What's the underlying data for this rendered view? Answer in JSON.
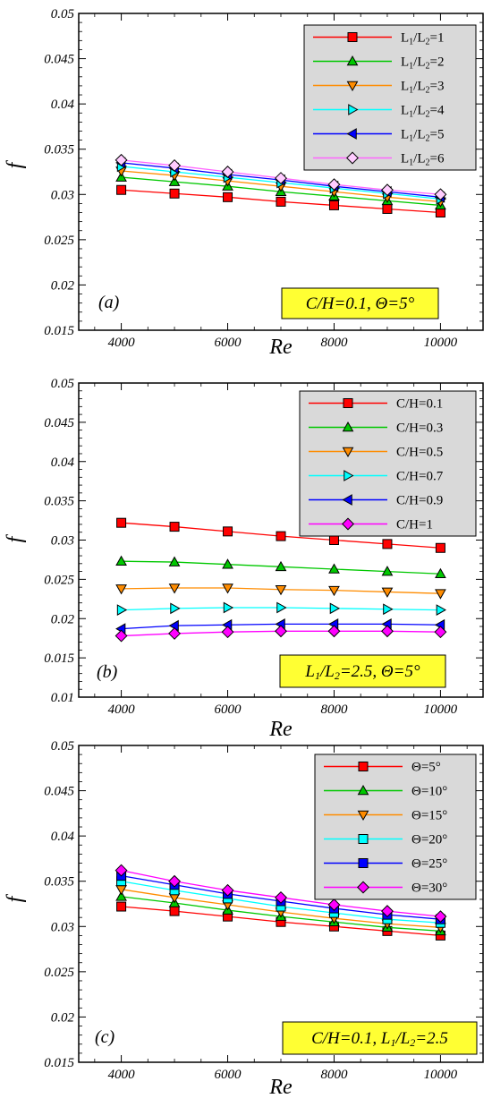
{
  "chart_data": [
    {
      "type": "line",
      "panel_label": "(a)",
      "xlabel": "Re",
      "ylabel": "f",
      "xlim": [
        3200,
        10800
      ],
      "ylim": [
        0.015,
        0.05
      ],
      "xticks": [
        "4000",
        "6000",
        "8000",
        "10000"
      ],
      "yticks": [
        "0.015",
        "0.02",
        "0.025",
        "0.03",
        "0.035",
        "0.04",
        "0.045",
        "0.05"
      ],
      "annotation": "C/H=0.1, Θ=5°",
      "legend_position": "top-right",
      "x": [
        4000,
        5000,
        6000,
        7000,
        8000,
        9000,
        10000
      ],
      "series": [
        {
          "name": "L1/L2=1",
          "label_base": "L",
          "label_parts": [
            "1",
            "/L",
            "2",
            "=1"
          ],
          "color": "#ff0000",
          "marker": "square",
          "fill": "#ff0000",
          "values": [
            0.0305,
            0.0301,
            0.0297,
            0.0292,
            0.0288,
            0.0284,
            0.028
          ]
        },
        {
          "name": "L1/L2=2",
          "label_base": "L",
          "label_parts": [
            "1",
            "/L",
            "2",
            "=2"
          ],
          "color": "#00c800",
          "marker": "triangle-up",
          "fill": "#00c800",
          "values": [
            0.0319,
            0.0314,
            0.0309,
            0.0303,
            0.0298,
            0.0293,
            0.0288
          ]
        },
        {
          "name": "L1/L2=3",
          "label_base": "L",
          "label_parts": [
            "1",
            "/L",
            "2",
            "=3"
          ],
          "color": "#ff8c00",
          "marker": "triangle-down",
          "fill": "#ff8c00",
          "values": [
            0.0326,
            0.0321,
            0.0315,
            0.0309,
            0.0303,
            0.0297,
            0.0292
          ]
        },
        {
          "name": "L1/L2=4",
          "label_base": "L",
          "label_parts": [
            "1",
            "/L",
            "2",
            "=4"
          ],
          "color": "#00ffff",
          "marker": "triangle-right",
          "fill": "#00ffff",
          "values": [
            0.0331,
            0.0325,
            0.0319,
            0.0313,
            0.0307,
            0.0301,
            0.0295
          ]
        },
        {
          "name": "L1/L2=5",
          "label_base": "L",
          "label_parts": [
            "1",
            "/L",
            "2",
            "=5"
          ],
          "color": "#0000ff",
          "marker": "triangle-left",
          "fill": "#0000ff",
          "values": [
            0.0335,
            0.0329,
            0.0322,
            0.0316,
            0.0309,
            0.0303,
            0.0297
          ]
        },
        {
          "name": "L1/L2=6",
          "label_base": "L",
          "label_parts": [
            "1",
            "/L",
            "2",
            "=6"
          ],
          "color": "#ff66ff",
          "marker": "diamond",
          "fill": "#ffccff",
          "values": [
            0.0338,
            0.0332,
            0.0325,
            0.0318,
            0.0311,
            0.0305,
            0.03
          ]
        }
      ]
    },
    {
      "type": "line",
      "panel_label": "(b)",
      "xlabel": "Re",
      "ylabel": "f",
      "xlim": [
        3200,
        10800
      ],
      "ylim": [
        0.01,
        0.05
      ],
      "xticks": [
        "4000",
        "6000",
        "8000",
        "10000"
      ],
      "yticks": [
        "0.01",
        "0.015",
        "0.02",
        "0.025",
        "0.03",
        "0.035",
        "0.04",
        "0.045",
        "0.05"
      ],
      "annotation": "L1/L2=2.5, Θ=5°",
      "legend_position": "top-right",
      "x": [
        4000,
        5000,
        6000,
        7000,
        8000,
        9000,
        10000
      ],
      "series": [
        {
          "name": "C/H=0.1",
          "color": "#ff0000",
          "marker": "square",
          "fill": "#ff0000",
          "values": [
            0.0322,
            0.0317,
            0.0311,
            0.0305,
            0.03,
            0.0295,
            0.029
          ]
        },
        {
          "name": "C/H=0.3",
          "color": "#00c800",
          "marker": "triangle-up",
          "fill": "#00c800",
          "values": [
            0.0273,
            0.0272,
            0.0269,
            0.0266,
            0.0263,
            0.026,
            0.0257
          ]
        },
        {
          "name": "C/H=0.5",
          "color": "#ff8c00",
          "marker": "triangle-down",
          "fill": "#ff8c00",
          "values": [
            0.0238,
            0.0239,
            0.0239,
            0.0237,
            0.0236,
            0.0234,
            0.0232
          ]
        },
        {
          "name": "C/H=0.7",
          "color": "#00ffff",
          "marker": "triangle-right",
          "fill": "#00ffff",
          "values": [
            0.0211,
            0.0213,
            0.0214,
            0.0214,
            0.0213,
            0.0212,
            0.0211
          ]
        },
        {
          "name": "C/H=0.9",
          "color": "#0000ff",
          "marker": "triangle-left",
          "fill": "#0000ff",
          "values": [
            0.0187,
            0.0191,
            0.0192,
            0.0193,
            0.0193,
            0.0193,
            0.0192
          ]
        },
        {
          "name": "C/H=1",
          "color": "#ff00ff",
          "marker": "diamond",
          "fill": "#ff00ff",
          "values": [
            0.0178,
            0.0181,
            0.0183,
            0.0184,
            0.0184,
            0.0184,
            0.0183
          ]
        }
      ]
    },
    {
      "type": "line",
      "panel_label": "(c)",
      "xlabel": "Re",
      "ylabel": "f",
      "xlim": [
        3200,
        10800
      ],
      "ylim": [
        0.015,
        0.05
      ],
      "xticks": [
        "4000",
        "6000",
        "8000",
        "10000"
      ],
      "yticks": [
        "0.015",
        "0.02",
        "0.025",
        "0.03",
        "0.035",
        "0.04",
        "0.045",
        "0.05"
      ],
      "annotation": "C/H=0.1, L1/L2=2.5",
      "legend_position": "top-right",
      "x": [
        4000,
        5000,
        6000,
        7000,
        8000,
        9000,
        10000
      ],
      "series": [
        {
          "name": "Θ=5°",
          "color": "#ff0000",
          "marker": "square",
          "fill": "#ff0000",
          "values": [
            0.0322,
            0.0317,
            0.0311,
            0.0305,
            0.03,
            0.0295,
            0.029
          ]
        },
        {
          "name": "Θ=10°",
          "color": "#00c800",
          "marker": "triangle-up",
          "fill": "#00c800",
          "values": [
            0.0333,
            0.0326,
            0.0318,
            0.0311,
            0.0305,
            0.0299,
            0.0295
          ]
        },
        {
          "name": "Θ=15°",
          "color": "#ff8c00",
          "marker": "triangle-down",
          "fill": "#ff8c00",
          "values": [
            0.0341,
            0.0332,
            0.0324,
            0.0316,
            0.0309,
            0.0303,
            0.0299
          ]
        },
        {
          "name": "Θ=20°",
          "color": "#00ffff",
          "marker": "square",
          "fill": "#00ffff",
          "values": [
            0.035,
            0.034,
            0.0331,
            0.0322,
            0.0315,
            0.0308,
            0.0304
          ]
        },
        {
          "name": "Θ=25°",
          "color": "#0000ff",
          "marker": "square",
          "fill": "#0000ff",
          "values": [
            0.0356,
            0.0346,
            0.0336,
            0.0328,
            0.032,
            0.0313,
            0.0308
          ]
        },
        {
          "name": "Θ=30°",
          "color": "#ff00ff",
          "marker": "diamond",
          "fill": "#ff00ff",
          "values": [
            0.0362,
            0.035,
            0.034,
            0.0332,
            0.0324,
            0.0317,
            0.0311
          ]
        }
      ]
    }
  ],
  "style": {
    "legend_bg": "#d9d9d9",
    "annotation_bg": "#ffff33"
  }
}
